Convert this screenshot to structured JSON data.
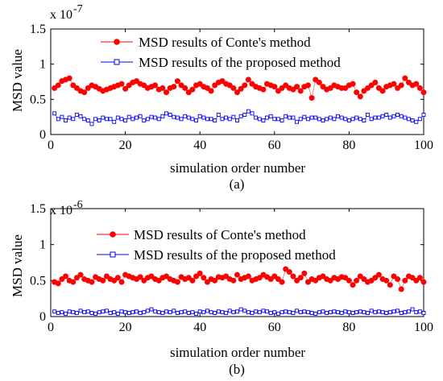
{
  "chart_data": [
    {
      "type": "line",
      "caption": "(a)",
      "xlabel": "simulation order number",
      "ylabel": "MSD value",
      "scale_text": "x 10",
      "scale_exponent": "-7",
      "xlim": [
        0,
        100
      ],
      "ylim": [
        0,
        1.5
      ],
      "xticks": [
        "0",
        "20",
        "40",
        "60",
        "80",
        "100"
      ],
      "yticks": [
        "0",
        "0.5",
        "1",
        "1.5"
      ],
      "grid": false,
      "legend_position": "top-center",
      "x": [
        1,
        2,
        3,
        4,
        5,
        6,
        7,
        8,
        9,
        10,
        11,
        12,
        13,
        14,
        15,
        16,
        17,
        18,
        19,
        20,
        21,
        22,
        23,
        24,
        25,
        26,
        27,
        28,
        29,
        30,
        31,
        32,
        33,
        34,
        35,
        36,
        37,
        38,
        39,
        40,
        41,
        42,
        43,
        44,
        45,
        46,
        47,
        48,
        49,
        50,
        51,
        52,
        53,
        54,
        55,
        56,
        57,
        58,
        59,
        60,
        61,
        62,
        63,
        64,
        65,
        66,
        67,
        68,
        69,
        70,
        71,
        72,
        73,
        74,
        75,
        76,
        77,
        78,
        79,
        80,
        81,
        82,
        83,
        84,
        85,
        86,
        87,
        88,
        89,
        90,
        91,
        92,
        93,
        94,
        95,
        96,
        97,
        98,
        99,
        100
      ],
      "series": [
        {
          "name": "MSD results of Conte's method",
          "color": "#ff0000",
          "marker": "filled-circle",
          "values": [
            0.66,
            0.7,
            0.76,
            0.78,
            0.8,
            0.7,
            0.66,
            0.62,
            0.6,
            0.66,
            0.7,
            0.68,
            0.65,
            0.62,
            0.64,
            0.66,
            0.68,
            0.7,
            0.72,
            0.65,
            0.7,
            0.74,
            0.76,
            0.72,
            0.7,
            0.66,
            0.68,
            0.7,
            0.64,
            0.66,
            0.6,
            0.66,
            0.68,
            0.76,
            0.7,
            0.66,
            0.6,
            0.64,
            0.7,
            0.72,
            0.68,
            0.66,
            0.62,
            0.7,
            0.74,
            0.76,
            0.72,
            0.7,
            0.66,
            0.6,
            0.65,
            0.7,
            0.78,
            0.72,
            0.68,
            0.66,
            0.64,
            0.72,
            0.7,
            0.68,
            0.62,
            0.66,
            0.7,
            0.66,
            0.64,
            0.68,
            0.62,
            0.68,
            0.7,
            0.52,
            0.78,
            0.74,
            0.68,
            0.64,
            0.66,
            0.7,
            0.68,
            0.66,
            0.66,
            0.7,
            0.72,
            0.6,
            0.54,
            0.62,
            0.66,
            0.7,
            0.74,
            0.66,
            0.62,
            0.68,
            0.7,
            0.72,
            0.66,
            0.7,
            0.8,
            0.74,
            0.7,
            0.72,
            0.66,
            0.6
          ]
        },
        {
          "name": "MSD results of the proposed method",
          "color": "#0000ff",
          "marker": "open-square",
          "values": [
            0.3,
            0.22,
            0.25,
            0.2,
            0.24,
            0.22,
            0.28,
            0.26,
            0.22,
            0.2,
            0.15,
            0.22,
            0.2,
            0.24,
            0.22,
            0.22,
            0.18,
            0.24,
            0.22,
            0.2,
            0.25,
            0.22,
            0.24,
            0.26,
            0.2,
            0.22,
            0.25,
            0.24,
            0.22,
            0.26,
            0.3,
            0.28,
            0.25,
            0.24,
            0.22,
            0.26,
            0.24,
            0.22,
            0.2,
            0.26,
            0.24,
            0.22,
            0.22,
            0.2,
            0.28,
            0.22,
            0.24,
            0.22,
            0.25,
            0.2,
            0.26,
            0.28,
            0.33,
            0.3,
            0.24,
            0.22,
            0.2,
            0.24,
            0.26,
            0.22,
            0.22,
            0.2,
            0.26,
            0.24,
            0.24,
            0.18,
            0.22,
            0.25,
            0.22,
            0.24,
            0.24,
            0.22,
            0.2,
            0.22,
            0.24,
            0.22,
            0.26,
            0.24,
            0.22,
            0.2,
            0.22,
            0.24,
            0.22,
            0.2,
            0.28,
            0.22,
            0.24,
            0.24,
            0.26,
            0.28,
            0.24,
            0.26,
            0.28,
            0.26,
            0.24,
            0.22,
            0.2,
            0.18,
            0.22,
            0.28
          ]
        }
      ]
    },
    {
      "type": "line",
      "caption": "(b)",
      "xlabel": "simulation order number",
      "ylabel": "MSD value",
      "scale_text": "x 10",
      "scale_exponent": "-6",
      "xlim": [
        0,
        100
      ],
      "ylim": [
        0,
        1.5
      ],
      "xticks": [
        "0",
        "20",
        "40",
        "60",
        "80",
        "100"
      ],
      "yticks": [
        "0",
        "0.5",
        "1",
        "1.5"
      ],
      "grid": false,
      "legend_position": "top-center",
      "x": [
        1,
        2,
        3,
        4,
        5,
        6,
        7,
        8,
        9,
        10,
        11,
        12,
        13,
        14,
        15,
        16,
        17,
        18,
        19,
        20,
        21,
        22,
        23,
        24,
        25,
        26,
        27,
        28,
        29,
        30,
        31,
        32,
        33,
        34,
        35,
        36,
        37,
        38,
        39,
        40,
        41,
        42,
        43,
        44,
        45,
        46,
        47,
        48,
        49,
        50,
        51,
        52,
        53,
        54,
        55,
        56,
        57,
        58,
        59,
        60,
        61,
        62,
        63,
        64,
        65,
        66,
        67,
        68,
        69,
        70,
        71,
        72,
        73,
        74,
        75,
        76,
        77,
        78,
        79,
        80,
        81,
        82,
        83,
        84,
        85,
        86,
        87,
        88,
        89,
        90,
        91,
        92,
        93,
        94,
        95,
        96,
        97,
        98,
        99,
        100
      ],
      "series": [
        {
          "name": "MSD results of Conte's method",
          "color": "#ff0000",
          "marker": "filled-circle",
          "values": [
            0.48,
            0.46,
            0.52,
            0.56,
            0.5,
            0.48,
            0.54,
            0.58,
            0.52,
            0.5,
            0.48,
            0.55,
            0.52,
            0.5,
            0.56,
            0.52,
            0.5,
            0.54,
            0.48,
            0.58,
            0.56,
            0.54,
            0.52,
            0.55,
            0.5,
            0.54,
            0.56,
            0.52,
            0.5,
            0.54,
            0.56,
            0.52,
            0.5,
            0.48,
            0.55,
            0.52,
            0.54,
            0.5,
            0.56,
            0.6,
            0.54,
            0.48,
            0.52,
            0.5,
            0.55,
            0.54,
            0.56,
            0.52,
            0.5,
            0.58,
            0.52,
            0.54,
            0.56,
            0.5,
            0.52,
            0.54,
            0.58,
            0.55,
            0.52,
            0.56,
            0.52,
            0.48,
            0.66,
            0.62,
            0.56,
            0.5,
            0.54,
            0.6,
            0.48,
            0.52,
            0.5,
            0.54,
            0.56,
            0.52,
            0.5,
            0.54,
            0.52,
            0.55,
            0.54,
            0.5,
            0.44,
            0.5,
            0.56,
            0.52,
            0.48,
            0.5,
            0.54,
            0.58,
            0.52,
            0.5,
            0.44,
            0.56,
            0.52,
            0.38,
            0.5,
            0.56,
            0.54,
            0.5,
            0.54,
            0.48
          ]
        },
        {
          "name": "MSD results of the proposed method",
          "color": "#0000ff",
          "marker": "open-square",
          "values": [
            0.07,
            0.05,
            0.06,
            0.04,
            0.07,
            0.06,
            0.05,
            0.08,
            0.06,
            0.07,
            0.05,
            0.04,
            0.06,
            0.07,
            0.08,
            0.05,
            0.06,
            0.04,
            0.07,
            0.06,
            0.05,
            0.06,
            0.07,
            0.05,
            0.06,
            0.08,
            0.1,
            0.07,
            0.06,
            0.05,
            0.07,
            0.06,
            0.08,
            0.05,
            0.06,
            0.07,
            0.05,
            0.06,
            0.04,
            0.07,
            0.06,
            0.08,
            0.06,
            0.05,
            0.07,
            0.06,
            0.05,
            0.08,
            0.06,
            0.07,
            0.1,
            0.08,
            0.06,
            0.05,
            0.07,
            0.06,
            0.08,
            0.07,
            0.05,
            0.06,
            0.04,
            0.06,
            0.07,
            0.06,
            0.05,
            0.08,
            0.06,
            0.07,
            0.06,
            0.05,
            0.04,
            0.06,
            0.07,
            0.05,
            0.06,
            0.07,
            0.06,
            0.05,
            0.07,
            0.06,
            0.05,
            0.06,
            0.07,
            0.06,
            0.05,
            0.08,
            0.06,
            0.07,
            0.06,
            0.05,
            0.06,
            0.07,
            0.08,
            0.05,
            0.06,
            0.07,
            0.1,
            0.06,
            0.07,
            0.05
          ]
        }
      ]
    }
  ]
}
